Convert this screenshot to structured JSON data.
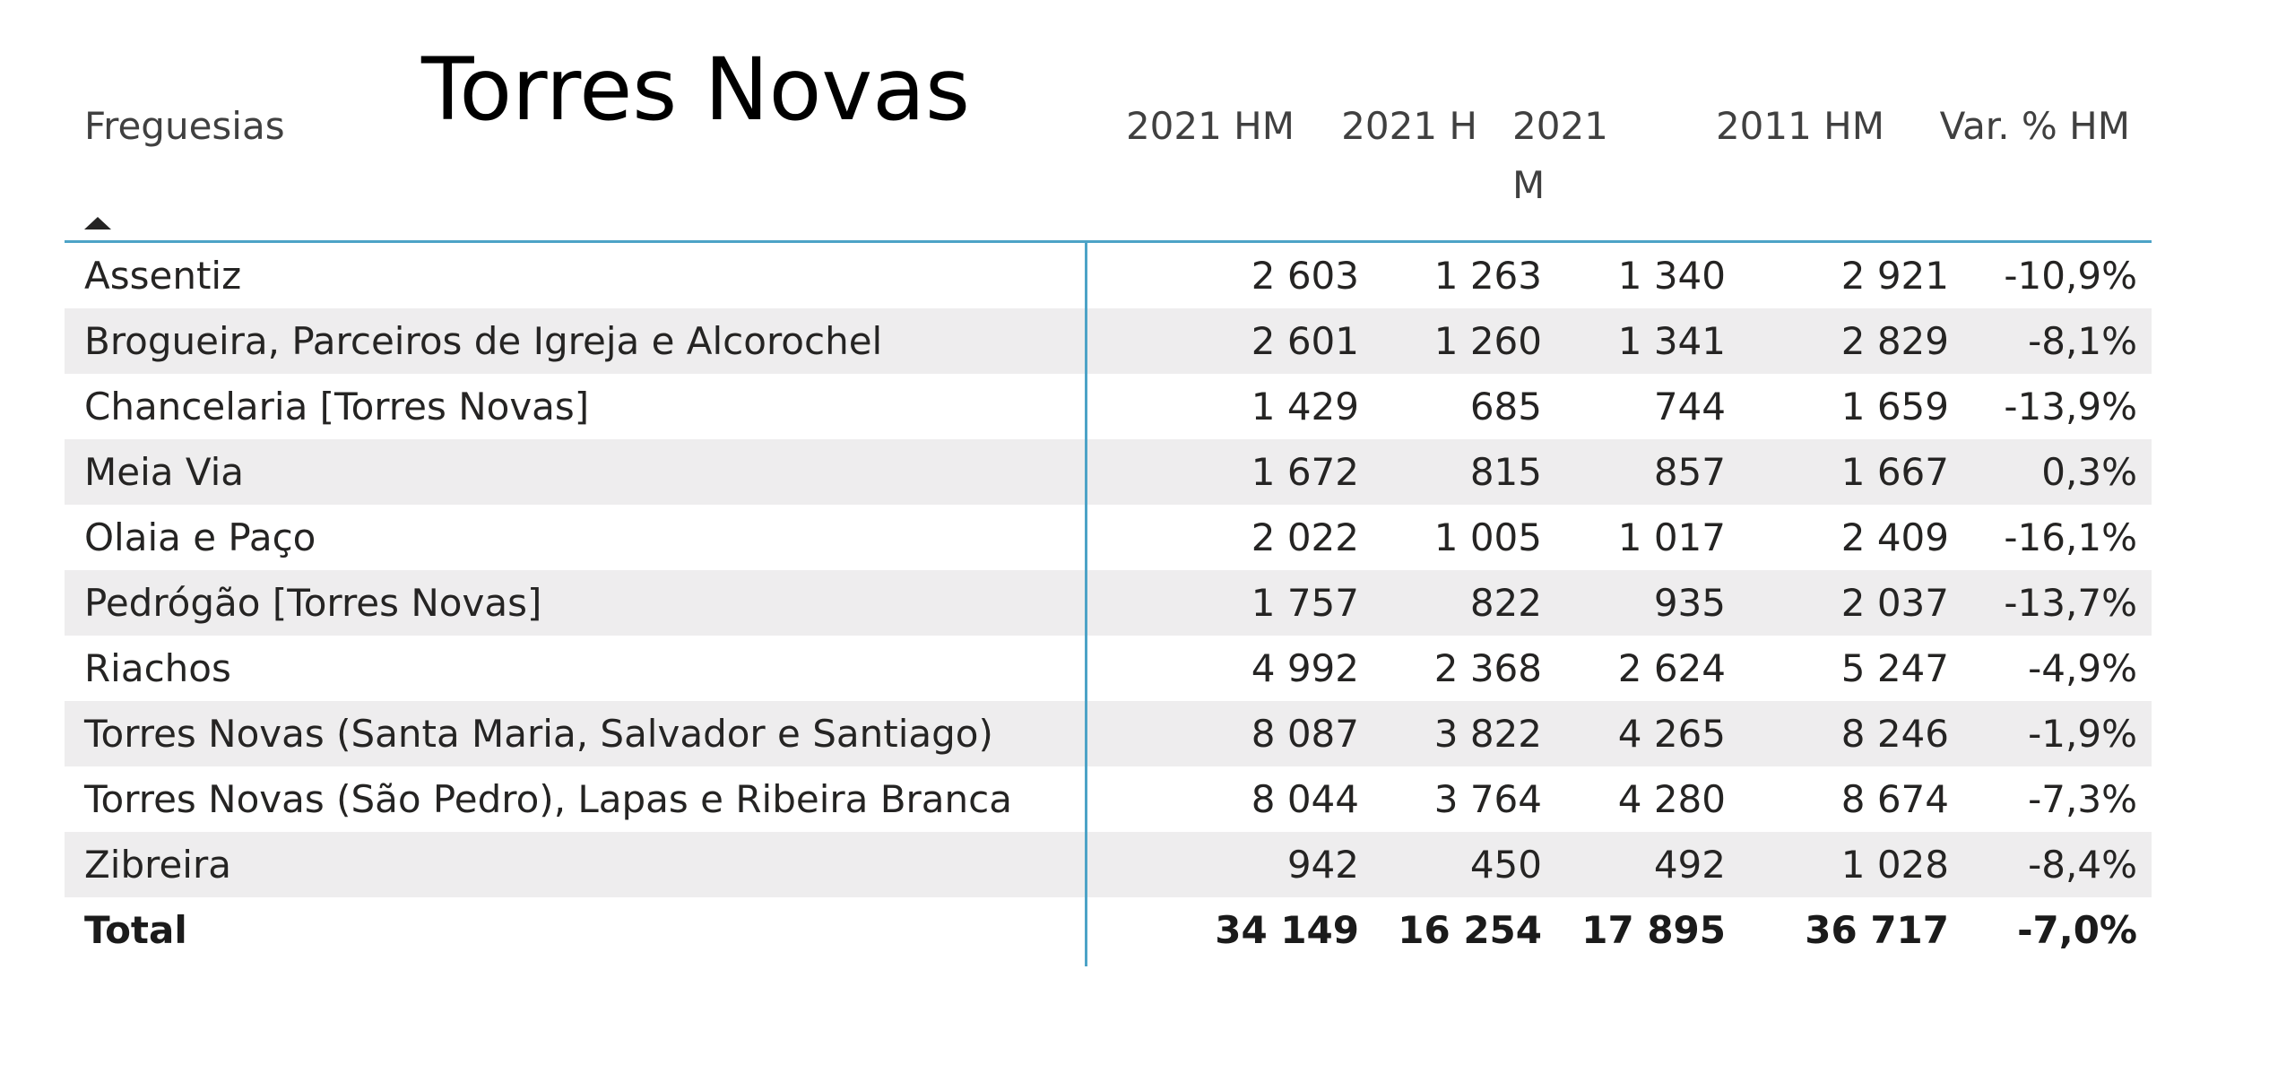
{
  "title": "Torres Novas",
  "columns": [
    "Freguesias",
    "2021 HM",
    "2021 H",
    "2021 M",
    "2011 HM",
    "Var. % HM"
  ],
  "sort_indicator": "sort-ascending-icon",
  "colors": {
    "header_rule": "#4da3c7",
    "alt_row": "#eeedee"
  },
  "chart_data": {
    "type": "table",
    "title": "Torres Novas",
    "columns": [
      "Freguesias",
      "2021 HM",
      "2021 H",
      "2021 M",
      "2011 HM",
      "Var. % HM"
    ],
    "rows": [
      [
        "Assentiz",
        "2 603",
        "1 263",
        "1 340",
        "2 921",
        "-10,9%"
      ],
      [
        "Brogueira, Parceiros de Igreja e Alcorochel",
        "2 601",
        "1 260",
        "1 341",
        "2 829",
        "-8,1%"
      ],
      [
        "Chancelaria [Torres Novas]",
        "1 429",
        "685",
        "744",
        "1 659",
        "-13,9%"
      ],
      [
        "Meia Via",
        "1 672",
        "815",
        "857",
        "1 667",
        "0,3%"
      ],
      [
        "Olaia e Paço",
        "2 022",
        "1 005",
        "1 017",
        "2 409",
        "-16,1%"
      ],
      [
        "Pedrógão [Torres Novas]",
        "1 757",
        "822",
        "935",
        "2 037",
        "-13,7%"
      ],
      [
        "Riachos",
        "4 992",
        "2 368",
        "2 624",
        "5 247",
        "-4,9%"
      ],
      [
        "Torres Novas (Santa Maria, Salvador e Santiago)",
        "8 087",
        "3 822",
        "4 265",
        "8 246",
        "-1,9%"
      ],
      [
        "Torres Novas (São Pedro), Lapas e Ribeira Branca",
        "8 044",
        "3 764",
        "4 280",
        "8 674",
        "-7,3%"
      ],
      [
        "Zibreira",
        "942",
        "450",
        "492",
        "1 028",
        "-8,4%"
      ]
    ],
    "total": [
      "Total",
      "34 149",
      "16 254",
      "17 895",
      "36 717",
      "-7,0%"
    ]
  }
}
